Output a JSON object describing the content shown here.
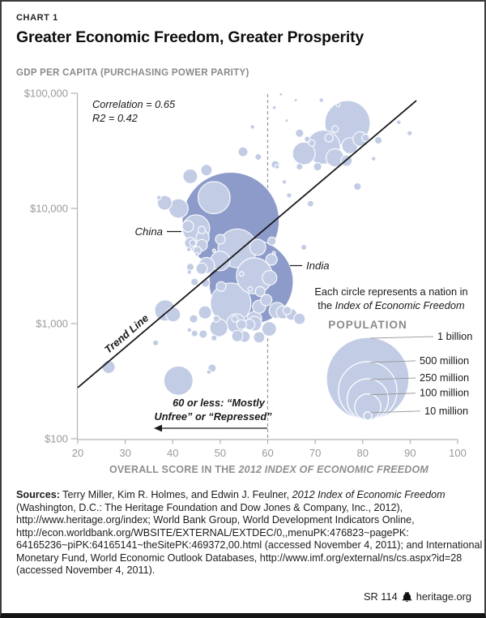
{
  "header": {
    "chart_label": "CHART 1",
    "title": "Greater Economic Freedom, Greater Prosperity"
  },
  "colors": {
    "bubble": "#c2cce5",
    "bubble_highlighted": "#8c9bc9",
    "bubble_stroke": "#ffffff",
    "trend_line": "#1a1a1a",
    "dashed_line": "#999999",
    "axis": "#b3b3b3",
    "tick_text": "#999999",
    "muted_heading": "#8a8a8a"
  },
  "chart_data": {
    "type": "scatter",
    "title": "Greater Economic Freedom, Greater Prosperity",
    "y_axis": {
      "label": "GDP PER CAPITA (PURCHASING POWER PARITY)",
      "scale": "log",
      "ticks": [
        {
          "value": 100000,
          "label": "$100,000"
        },
        {
          "value": 10000,
          "label": "$10,000"
        },
        {
          "value": 1000,
          "label": "$1,000"
        },
        {
          "value": 100,
          "label": "$100"
        }
      ]
    },
    "x_axis": {
      "label_regular": "OVERALL SCORE IN THE ",
      "label_italic": "2012 INDEX OF ECONOMIC FREEDOM",
      "min": 20,
      "max": 100,
      "ticks": [
        20,
        30,
        40,
        50,
        60,
        70,
        80,
        90,
        100
      ]
    },
    "stats": {
      "correlation": "Correlation = 0.65",
      "r2": "R2 = 0.42"
    },
    "annotations": {
      "china": "China",
      "india": "India",
      "trend": "Trend Line",
      "threshold_line1": "60 or less: “Mostly",
      "threshold_line2": "Unfree” or “Repressed”"
    },
    "dashed_line": {
      "score": 60
    },
    "trend_line": {
      "start": {
        "score": 20,
        "gdp": 278
      },
      "end": {
        "score": 91.3,
        "gdp": 86300
      }
    },
    "legend": {
      "caption_line1": "Each circle represents a nation in",
      "caption_line2_regular": "the ",
      "caption_line2_italic": "Index of Economic Freedom",
      "population_title": "POPULATION",
      "sizes": [
        {
          "label": "1 billion",
          "population_millions": 1000
        },
        {
          "label": "500 million",
          "population_millions": 500
        },
        {
          "label": "250 million",
          "population_millions": 250
        },
        {
          "label": "100 million",
          "population_millions": 100
        },
        {
          "label": "10 million",
          "population_millions": 10
        }
      ]
    },
    "bubbles_columns": [
      "score",
      "gdp_usd",
      "population_millions",
      "is_named_nation"
    ],
    "bubbles": [
      [
        52.2,
        7800,
        1380,
        1
      ],
      [
        56.5,
        2300,
        1040,
        1
      ],
      [
        76.8,
        55000,
        300
      ],
      [
        71.7,
        34000,
        170
      ],
      [
        67.6,
        30000,
        75
      ],
      [
        74.2,
        27500,
        47
      ],
      [
        77.3,
        35000,
        38
      ],
      [
        79.5,
        40000,
        31
      ],
      [
        76.6,
        26000,
        19
      ],
      [
        70.5,
        23000,
        10
      ],
      [
        69.3,
        37000,
        6
      ],
      [
        68.3,
        40000,
        5
      ],
      [
        72.9,
        41000,
        10
      ],
      [
        74.2,
        49000,
        6
      ],
      [
        80.6,
        41000,
        8
      ],
      [
        83.3,
        39000,
        8
      ],
      [
        87.6,
        56000,
        3
      ],
      [
        89.9,
        45000,
        4
      ],
      [
        82.3,
        27000,
        3
      ],
      [
        78.9,
        15500,
        8
      ],
      [
        71.3,
        87000,
        3
      ],
      [
        74.8,
        79000,
        2
      ],
      [
        66.7,
        45000,
        10
      ],
      [
        65.9,
        87000,
        1.5
      ],
      [
        64.0,
        58000,
        1.5
      ],
      [
        61.4,
        75000,
        2
      ],
      [
        66.7,
        23000,
        6
      ],
      [
        63.5,
        17000,
        3
      ],
      [
        62.0,
        23000,
        3
      ],
      [
        69.0,
        11000,
        6
      ],
      [
        64.5,
        13000,
        4
      ],
      [
        54.8,
        31000,
        14
      ],
      [
        58.0,
        28000,
        6
      ],
      [
        61.6,
        24000,
        10
      ],
      [
        56.8,
        51000,
        3
      ],
      [
        62.8,
        98000,
        1.5
      ],
      [
        48.7,
        12400,
        150
      ],
      [
        44.9,
        6700,
        110
      ],
      [
        46.3,
        5600,
        25
      ],
      [
        41.2,
        10000,
        55
      ],
      [
        38.3,
        11200,
        31
      ],
      [
        37.1,
        12400,
        3
      ],
      [
        43.2,
        7000,
        19
      ],
      [
        46.1,
        6500,
        8
      ],
      [
        43.7,
        5000,
        19
      ],
      [
        45.2,
        4300,
        10
      ],
      [
        43.7,
        3100,
        8
      ],
      [
        46.1,
        3000,
        19
      ],
      [
        44.6,
        2300,
        8
      ],
      [
        43.4,
        4400,
        3
      ],
      [
        43.5,
        2800,
        3
      ],
      [
        43.7,
        19000,
        31
      ],
      [
        47.1,
        21500,
        19
      ],
      [
        53.6,
        4500,
        220
      ],
      [
        57.2,
        2600,
        190
      ],
      [
        52.2,
        1500,
        240
      ],
      [
        57.9,
        4600,
        38
      ],
      [
        50.0,
        3500,
        55
      ],
      [
        47.1,
        3200,
        38
      ],
      [
        60.9,
        5200,
        10
      ],
      [
        60.8,
        3600,
        19
      ],
      [
        60.4,
        2500,
        31
      ],
      [
        58.4,
        1900,
        14
      ],
      [
        59.7,
        1600,
        19
      ],
      [
        46.8,
        1250,
        25
      ],
      [
        44.4,
        1100,
        10
      ],
      [
        57.2,
        1100,
        31
      ],
      [
        50.0,
        5400,
        14
      ],
      [
        46.1,
        4800,
        19
      ],
      [
        44.2,
        5000,
        6
      ],
      [
        46.9,
        2250,
        10
      ],
      [
        50.2,
        2100,
        14
      ],
      [
        54.5,
        2700,
        3
      ],
      [
        56.3,
        2000,
        3
      ],
      [
        53.1,
        1100,
        6
      ],
      [
        49.2,
        1100,
        6
      ],
      [
        48.7,
        4300,
        1.5
      ],
      [
        45.1,
        4000,
        2
      ],
      [
        38.4,
        1300,
        65
      ],
      [
        40.1,
        1200,
        31
      ],
      [
        67.6,
        4600,
        5
      ],
      [
        61.3,
        4100,
        1.5
      ],
      [
        58.2,
        1400,
        25
      ],
      [
        62.0,
        1300,
        38
      ],
      [
        65.0,
        1200,
        19
      ],
      [
        57.2,
        1000,
        31
      ],
      [
        60.3,
        900,
        31
      ],
      [
        58.2,
        760,
        19
      ],
      [
        56.2,
        980,
        16
      ],
      [
        55.1,
        770,
        19
      ],
      [
        63.2,
        1250,
        25
      ],
      [
        66.7,
        1100,
        19
      ],
      [
        53.4,
        1000,
        55
      ],
      [
        64.1,
        1300,
        10
      ],
      [
        49.7,
        920,
        47
      ],
      [
        46.4,
        810,
        10
      ],
      [
        44.6,
        820,
        6
      ],
      [
        43.5,
        880,
        3
      ],
      [
        53.6,
        780,
        19
      ],
      [
        54.5,
        980,
        14
      ],
      [
        48.7,
        750,
        5
      ],
      [
        36.4,
        680,
        5
      ],
      [
        41.2,
        320,
        125
      ],
      [
        48.3,
        410,
        10
      ],
      [
        47.6,
        380,
        3
      ],
      [
        26.5,
        420,
        25
      ]
    ]
  },
  "footer": {
    "sources_bold": "Sources:",
    "sources_line1_regular": " Terry Miller, Kim R. Holmes, and Edwin J. Feulner, ",
    "sources_line1_italic": "2012 Index of Economic Freedom",
    "lines": [
      "(Washington, D.C.: The Heritage Foundation and Dow Jones & Company, Inc., 2012),",
      "http://www.heritage.org/index; World Bank Group, World Development Indicators Online,",
      "http://econ.worldbank.org/WBSITE/EXTERNAL/EXTDEC/0,,menuPK:476823~pagePK:",
      "64165236~piPK:64165141~theSitePK:469372,00.html (accessed November 4, 2011); and International",
      "Monetary Fund, World Economic Outlook Databases, http://www.imf.org/external/ns/cs.aspx?id=28",
      "(accessed November 4, 2011)."
    ],
    "report_id": "SR 114",
    "site": "heritage.org"
  }
}
